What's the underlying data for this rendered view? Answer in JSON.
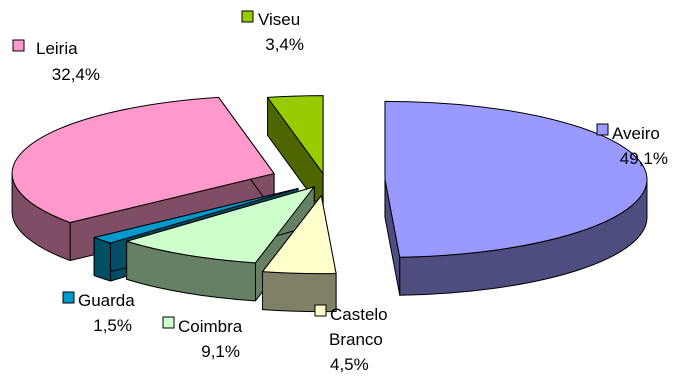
{
  "chart_data": {
    "type": "pie",
    "style": "3d-exploded",
    "legend_placement": "labels next to slices",
    "slices": [
      {
        "name": "Aveiro",
        "value_label": "49,1%",
        "value": 49.1,
        "color": "#9999FF",
        "side_color": "#4D4D80"
      },
      {
        "name": "Castelo",
        "name2": "Branco",
        "value_label": "4,5%",
        "value": 4.5,
        "color": "#FFFFCC",
        "side_color": "#808066"
      },
      {
        "name": "Coimbra",
        "value_label": "9,1%",
        "value": 9.1,
        "color": "#CCFFCC",
        "side_color": "#668066"
      },
      {
        "name": "Guarda",
        "value_label": "1,5%",
        "value": 1.5,
        "color": "#0099CC",
        "side_color": "#004D66"
      },
      {
        "name": "Leiria",
        "value_label": "32,4%",
        "value": 32.4,
        "color": "#FF99CC",
        "side_color": "#804D66"
      },
      {
        "name": "Viseu",
        "value_label": "3,4%",
        "value": 3.4,
        "color": "#99CC00",
        "side_color": "#4D6600"
      }
    ]
  }
}
